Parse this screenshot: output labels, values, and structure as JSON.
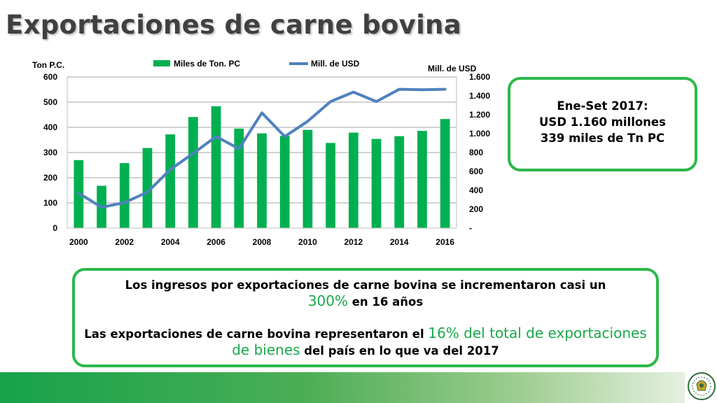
{
  "title": "Exportaciones de carne bovina",
  "chart_data": {
    "type": "bar-line",
    "x": [
      2000,
      2001,
      2002,
      2003,
      2004,
      2005,
      2006,
      2007,
      2008,
      2009,
      2010,
      2011,
      2012,
      2013,
      2014,
      2015,
      2016
    ],
    "x_tick_labels": [
      "2000",
      "2002",
      "2004",
      "2006",
      "2008",
      "2010",
      "2012",
      "2014",
      "2016"
    ],
    "series": [
      {
        "name": "Miles de Ton. PC",
        "type": "bar",
        "axis": "left",
        "color": "#00b050",
        "values": [
          270,
          168,
          258,
          318,
          372,
          441,
          484,
          395,
          376,
          366,
          390,
          338,
          379,
          354,
          365,
          386,
          433
        ]
      },
      {
        "name": "Mill. de USD",
        "type": "line",
        "axis": "right",
        "color": "#4f81bd",
        "values": [
          370,
          220,
          270,
          380,
          620,
          790,
          970,
          840,
          1220,
          970,
          1130,
          1340,
          1440,
          1340,
          1470,
          1465,
          1470
        ]
      }
    ],
    "left_axis": {
      "label": "Ton P.C.",
      "ylim": [
        0,
        600
      ],
      "ticks": [
        "0",
        "100",
        "200",
        "300",
        "400",
        "500",
        "600"
      ]
    },
    "right_axis": {
      "label": "Mill. de USD",
      "ylim": [
        0,
        1600
      ],
      "ticks": [
        "-",
        "200",
        "400",
        "600",
        "800",
        "1.000",
        "1.200",
        "1.400",
        "1.600"
      ]
    },
    "legend_position": "top",
    "grid": true
  },
  "box_ene": {
    "line1": "Ene-Set 2017:",
    "line2": "USD 1.160 millones",
    "line3": "339 miles de Tn PC"
  },
  "box_msg": {
    "p1_a": "Los ingresos por exportaciones de carne bovina se incrementaron casi un",
    "p1_hl": "300%",
    "p1_b": " en 16 años",
    "p2_a": "Las exportaciones de carne bovina representaron el ",
    "p2_hl": "16% del total de exportaciones de bienes",
    "p2_b": " del país en lo que va del 2017"
  },
  "colors": {
    "accent_green": "#2db84b",
    "highlight_green": "#1aa84a",
    "bar_green": "#00b050",
    "line_blue": "#4f81bd"
  }
}
